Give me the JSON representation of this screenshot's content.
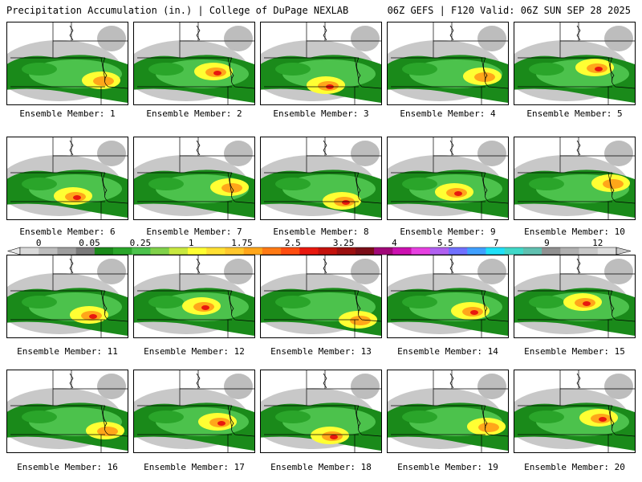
{
  "header": {
    "left": "Precipitation Accumulation (in.) | College of DuPage NEXLAB",
    "right": "06Z GEFS | F120 Valid: 06Z SUN SEP 28 2025"
  },
  "label_prefix": "Ensemble Member: ",
  "members": [
    1,
    2,
    3,
    4,
    5,
    6,
    7,
    8,
    9,
    10,
    11,
    12,
    13,
    14,
    15,
    16,
    17,
    18,
    19,
    20
  ],
  "colorbar": {
    "labels": [
      "0",
      "0.05",
      "0.25",
      "1",
      "1.75",
      "2.5",
      "3.25",
      "4",
      "5.5",
      "7",
      "9",
      "12"
    ],
    "colors": [
      "#d9d9d9",
      "#bdbdbd",
      "#9e9e9e",
      "#7a7a7a",
      "#1a8a1a",
      "#2aa52a",
      "#4cc24c",
      "#80d14a",
      "#c8e840",
      "#ffff33",
      "#ffe033",
      "#ffc82e",
      "#ffa61a",
      "#ff7a14",
      "#ff4d10",
      "#e8180e",
      "#c4120c",
      "#9c1010",
      "#7a0e18",
      "#a00878",
      "#cc10b0",
      "#e640e0",
      "#b060f0",
      "#7070ff",
      "#40a0ff",
      "#20e0f8",
      "#40d8c8",
      "#60c0b0",
      "#909090",
      "#b0b0b0",
      "#c8c8c8",
      "#dcdcdc"
    ]
  }
}
